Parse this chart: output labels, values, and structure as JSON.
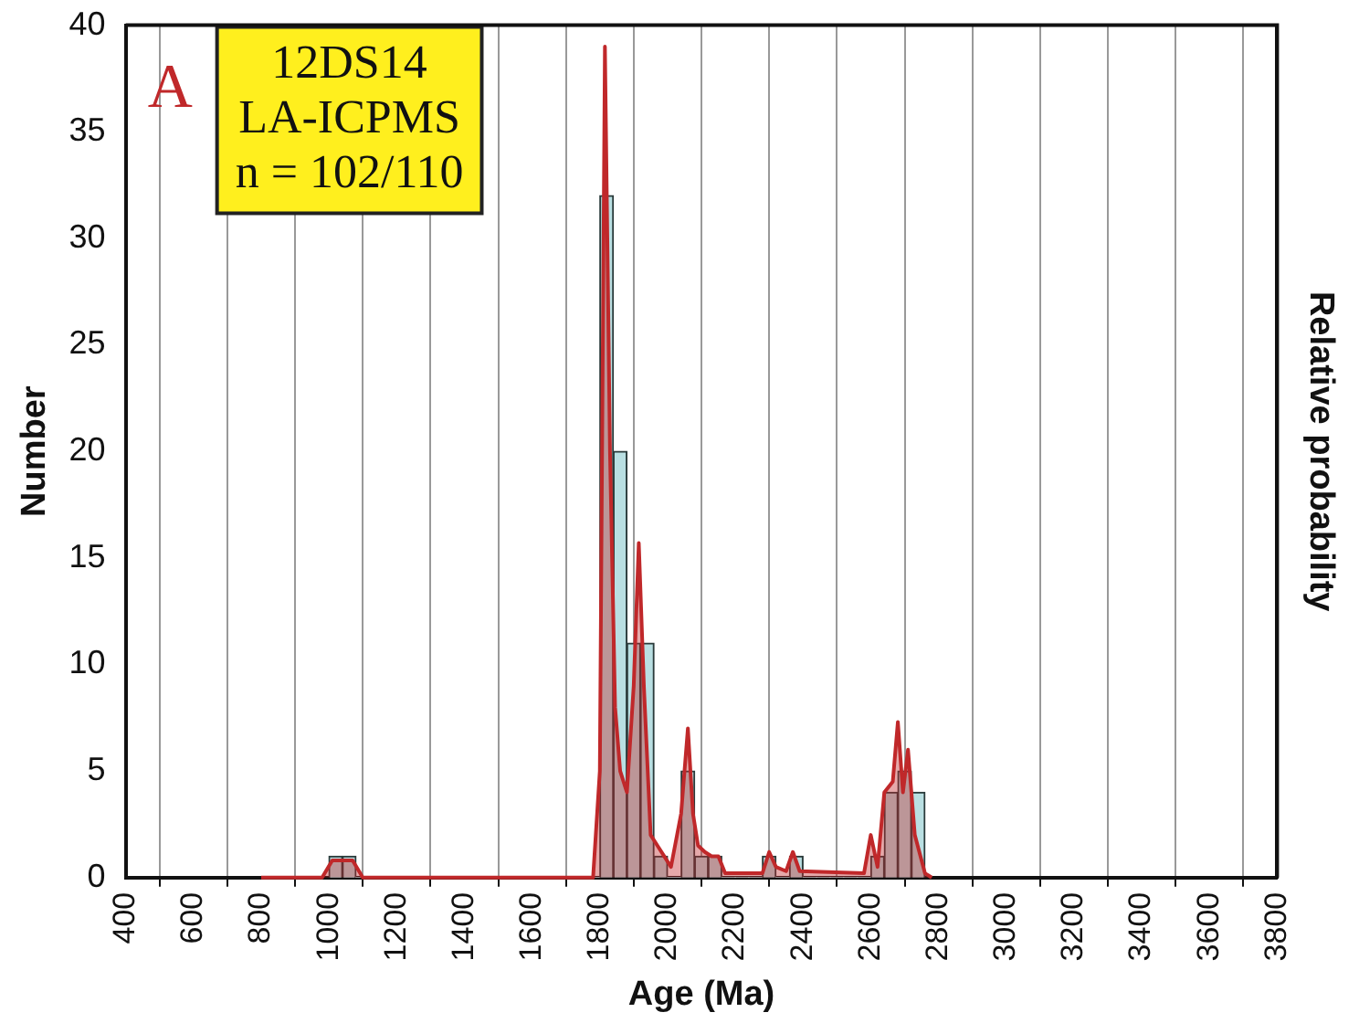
{
  "chart_data": {
    "type": "histogram",
    "xlabel": "Age (Ma)",
    "ylabel": "Number",
    "y2label": "Relative probability",
    "annotations": [
      "A",
      "12DS14",
      "LA-ICPMS",
      "n = 102/110"
    ],
    "bins": [
      1000,
      1040,
      1080,
      1120,
      1160,
      1200,
      1240,
      1280,
      1320,
      1360,
      1400,
      1440,
      1480,
      1520,
      1560,
      1600,
      1640,
      1680,
      1720,
      1760,
      1800,
      1840,
      1880,
      1920,
      1960,
      2000,
      2040,
      2080,
      2120,
      2160,
      2200,
      2240,
      2280,
      2320,
      2360,
      2400,
      2440,
      2480,
      2520,
      2560,
      2600,
      2640,
      2680,
      2720,
      2760
    ],
    "values": [
      1,
      1,
      0,
      0,
      0,
      0,
      0,
      0,
      0,
      0,
      0,
      0,
      0,
      0,
      0,
      0,
      0,
      0,
      0,
      0,
      32,
      20,
      11,
      11,
      1,
      0,
      5,
      1,
      1,
      0,
      0,
      0,
      1,
      0,
      1,
      0,
      0,
      0,
      0,
      0,
      1,
      4,
      5,
      4
    ],
    "color": "#b9dfe2",
    "series": [
      {
        "type": "line",
        "color": "#c0282a",
        "x": [
          800,
          980,
          1010,
          1040,
          1070,
          1100,
          1780,
          1800,
          1815,
          1830,
          1845,
          1860,
          1880,
          1900,
          1915,
          1930,
          1950,
          1970,
          1990,
          2010,
          2040,
          2060,
          2075,
          2090,
          2110,
          2130,
          2150,
          2170,
          2280,
          2300,
          2320,
          2350,
          2370,
          2390,
          2580,
          2600,
          2620,
          2640,
          2665,
          2680,
          2695,
          2710,
          2730,
          2760,
          2780
        ],
        "values": [
          0,
          0,
          0.8,
          0.8,
          0.8,
          0,
          0,
          5,
          39,
          20,
          8,
          5,
          4,
          9,
          15.7,
          9,
          2,
          1.5,
          1,
          0.5,
          3,
          7,
          3,
          1.5,
          1.2,
          1,
          1,
          0.2,
          0.2,
          1.2,
          0.5,
          0.3,
          1.2,
          0.3,
          0.2,
          2,
          0.5,
          4,
          4.5,
          7.3,
          4,
          6,
          2,
          0.2,
          0
        ]
      }
    ],
    "xlim": [
      400,
      3800
    ],
    "xticks": [
      400,
      600,
      800,
      1000,
      1200,
      1400,
      1600,
      1800,
      2000,
      2200,
      2400,
      2600,
      2800,
      3000,
      3200,
      3400,
      3600,
      3800
    ],
    "ylim": [
      0,
      40
    ],
    "yticks": [
      0,
      5,
      10,
      15,
      20,
      25,
      30,
      35,
      40
    ],
    "grid": "x",
    "legend": false
  }
}
